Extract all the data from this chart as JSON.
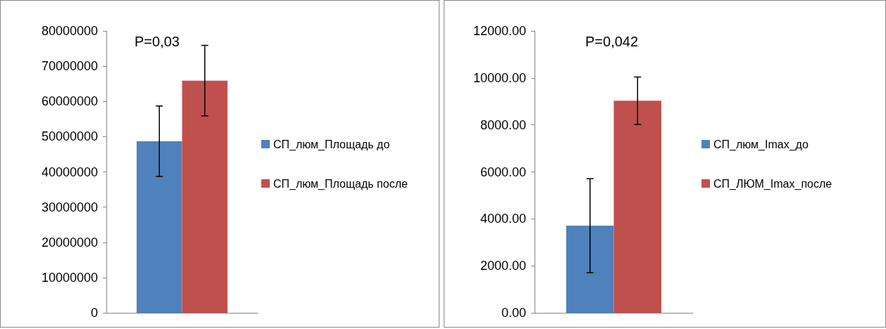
{
  "chart_data": [
    {
      "type": "bar",
      "categories": [
        null
      ],
      "series": [
        {
          "name": "СП_люм_Площадь до",
          "color": "#4f81bd",
          "values": [
            48700000
          ],
          "errors": [
            10000000
          ]
        },
        {
          "name": "СП_люм_Площадь после",
          "color": "#c0504d",
          "values": [
            65900000
          ],
          "errors": [
            10000000
          ]
        }
      ],
      "ylim": [
        0,
        80000000
      ],
      "yticks": [
        0,
        10000000,
        20000000,
        30000000,
        40000000,
        50000000,
        60000000,
        70000000,
        80000000
      ],
      "grid": false,
      "legend": "right",
      "annotations": [
        "P=0,03"
      ]
    },
    {
      "type": "bar",
      "categories": [
        null
      ],
      "series": [
        {
          "name": "СП_люм_Imax_до",
          "color": "#4f81bd",
          "values": [
            3710
          ],
          "errors": [
            2000
          ]
        },
        {
          "name": "СП_ЛЮМ_Imax_после",
          "color": "#c0504d",
          "values": [
            9030
          ],
          "errors": [
            1010
          ]
        }
      ],
      "ylim": [
        0,
        12000
      ],
      "yticks": [
        {
          "value": 0,
          "label": "0.00"
        },
        {
          "value": 2000,
          "label": "2000.00"
        },
        {
          "value": 4000,
          "label": "4000.00"
        },
        {
          "value": 6000,
          "label": "6000.00"
        },
        {
          "value": 8000,
          "label": "8000.00"
        },
        {
          "value": 10000,
          "label": "10000.00"
        },
        {
          "value": 12000,
          "label": "12000.00"
        }
      ],
      "grid": false,
      "legend": "right",
      "annotations": [
        "P=0,042"
      ]
    }
  ]
}
